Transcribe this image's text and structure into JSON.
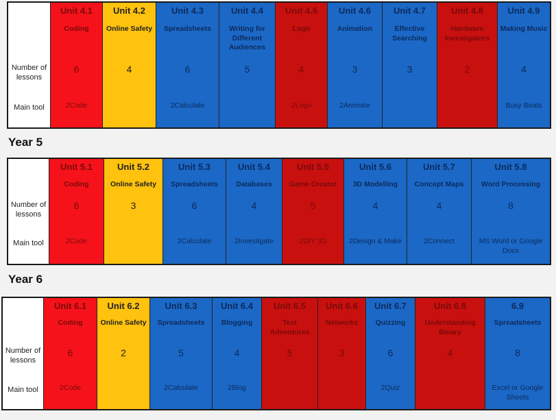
{
  "sections": [
    {
      "row_labels": [
        "Number of lessons",
        "Main tool"
      ],
      "units": [
        {
          "unit": "Unit 4.1",
          "name": "Coding",
          "lessons": 6,
          "tool": "2Code",
          "color": "#f5121a"
        },
        {
          "unit": "Unit 4.2",
          "name": "Online Safety",
          "lessons": 4,
          "tool": null,
          "color": "#ffc20e"
        },
        {
          "unit": "Unit 4.3",
          "name": "Spreadsheets",
          "lessons": 6,
          "tool": "2Calculate",
          "color": "#1b68c6"
        },
        {
          "unit": "Unit 4.4",
          "name": "Writing for Different Audiences",
          "lessons": 5,
          "tool": null,
          "color": "#1b68c6"
        },
        {
          "unit": "Unit 4.5",
          "name": "Logo",
          "lessons": 4,
          "tool": "2Logo",
          "color": "#c8100f"
        },
        {
          "unit": "Unit 4.6",
          "name": "Animation",
          "lessons": 3,
          "tool": "2Animate",
          "color": "#1b68c6"
        },
        {
          "unit": "Unit 4.7",
          "name": "Effective Searching",
          "lessons": 3,
          "tool": null,
          "color": "#1b68c6"
        },
        {
          "unit": "Unit 4.8",
          "name": "Hardware Investigators",
          "lessons": 2,
          "tool": null,
          "color": "#c8100f"
        },
        {
          "unit": "Unit 4.9",
          "name": "Making Music",
          "lessons": 4,
          "tool": "Busy Beats",
          "color": "#1b68c6"
        }
      ]
    },
    {
      "title": "Year 5",
      "row_labels": [
        "Number of lessons",
        "Main tool"
      ],
      "units": [
        {
          "unit": "Unit 5.1",
          "name": "Coding",
          "lessons": 6,
          "tool": "2Code",
          "color": "#f5121a"
        },
        {
          "unit": "Unit 5.2",
          "name": "Online Safety",
          "lessons": 3,
          "tool": null,
          "color": "#ffc20e"
        },
        {
          "unit": "Unit 5.3",
          "name": "Spreadsheets",
          "lessons": 6,
          "tool": "2Calculate",
          "color": "#1b68c6"
        },
        {
          "unit": "Unit 5.4",
          "name": "Databases",
          "lessons": 4,
          "tool": "2Investigate",
          "color": "#1b68c6"
        },
        {
          "unit": "Unit 5.5",
          "name": "Game Creator",
          "lessons": 5,
          "tool": "2DIY 3D",
          "color": "#c8100f"
        },
        {
          "unit": "Unit 5.6",
          "name": "3D Modelling",
          "lessons": 4,
          "tool": "2Design & Make",
          "color": "#1b68c6"
        },
        {
          "unit": "Unit 5.7",
          "name": "Concept Maps",
          "lessons": 4,
          "tool": "2Connect",
          "color": "#1b68c6"
        },
        {
          "unit": "Unit 5.8",
          "name": "Word Processing",
          "lessons": 8,
          "tool": "MS Word or Google Docs",
          "color": "#1b68c6"
        }
      ]
    },
    {
      "title": "Year 6",
      "row_labels": [
        "Number of lessons",
        "Main tool"
      ],
      "units": [
        {
          "unit": "Unit 6.1",
          "name": "Coding",
          "lessons": 6,
          "tool": "2Code",
          "color": "#f5121a"
        },
        {
          "unit": "Unit 6.2",
          "name": "Online Safety",
          "lessons": 2,
          "tool": null,
          "color": "#ffc20e"
        },
        {
          "unit": "Unit 6.3",
          "name": "Spreadsheets",
          "lessons": 5,
          "tool": "2Calculate",
          "color": "#1b68c6"
        },
        {
          "unit": "Unit 6.4",
          "name": "Blogging",
          "lessons": 4,
          "tool": "2Blog",
          "color": "#1b68c6"
        },
        {
          "unit": "Unit 6.5",
          "name": "Text Adventures",
          "lessons": 5,
          "tool": null,
          "color": "#c8100f"
        },
        {
          "unit": "Unit 6.6",
          "name": "Networks",
          "lessons": 3,
          "tool": null,
          "color": "#c8100f"
        },
        {
          "unit": "Unit 6.7",
          "name": "Quizzing",
          "lessons": 6,
          "tool": "2Quiz",
          "color": "#1b68c6"
        },
        {
          "unit": "Unit 6.8",
          "name": "Understanding Binary",
          "lessons": 4,
          "tool": null,
          "color": "#c8100f"
        },
        {
          "unit": "6.9",
          "name": "Spreadsheets",
          "lessons": 8,
          "tool": "Excel or Google Sheets",
          "color": "#1b68c6"
        }
      ]
    }
  ]
}
